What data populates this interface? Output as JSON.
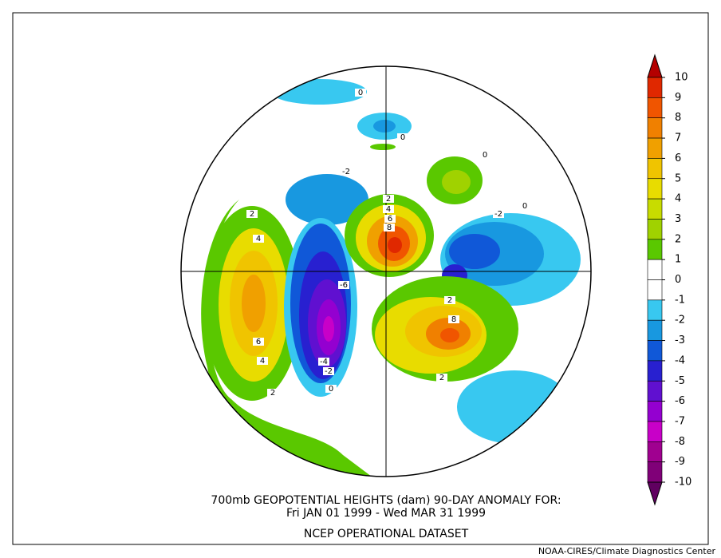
{
  "title_lines": [
    "700mb GEOPOTENTIAL HEIGHTS (dam)   90-DAY ANOMALY FOR:",
    "Fri JAN 01 1999 - Wed MAR 31 1999",
    "NCEP OPERATIONAL DATASET"
  ],
  "credit": "NOAA-CIRES/Climate Diagnostics Center",
  "colorbar": {
    "levels": [
      10,
      9,
      8,
      7,
      6,
      5,
      4,
      3,
      2,
      1,
      0,
      -1,
      -2,
      -3,
      -4,
      -5,
      -6,
      -7,
      -8,
      -9,
      -10
    ],
    "colors": [
      "#b40000",
      "#e02800",
      "#f05500",
      "#f08000",
      "#f0a000",
      "#f0c400",
      "#e8dc00",
      "#c8dc00",
      "#a0d200",
      "#5ac800",
      "#ffffff",
      "#ffffff",
      "#38c8f0",
      "#1898e0",
      "#1058d8",
      "#2820d0",
      "#6010d0",
      "#9400d0",
      "#c800c8",
      "#a00090",
      "#800078",
      "#600060"
    ]
  },
  "contour_labels": [
    "2",
    "4",
    "6",
    "4",
    "2",
    "-2",
    "-2",
    "0",
    "2",
    "4",
    "6",
    "8",
    "-6",
    "-4",
    "-2",
    "0",
    "2",
    "8",
    "2",
    "0",
    "0",
    "0"
  ]
}
